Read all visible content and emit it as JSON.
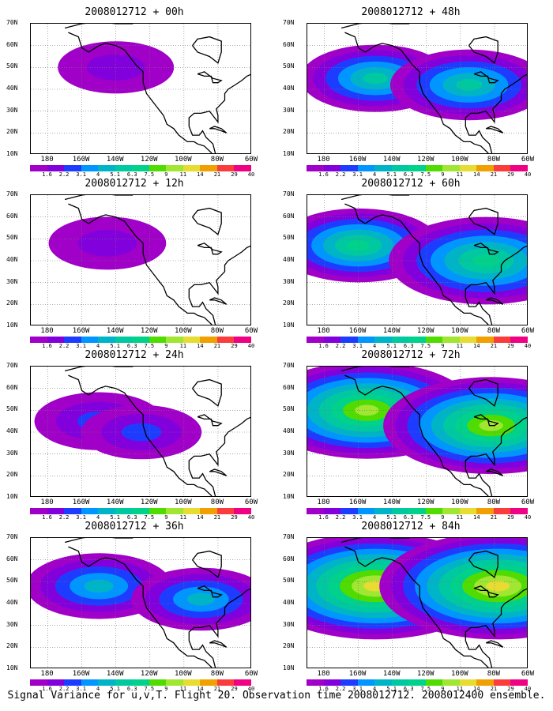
{
  "panels": [
    {
      "title": "2008012712 + 00h",
      "intensity": 0.15,
      "centers": [
        [
          -140,
          50,
          1.0
        ]
      ]
    },
    {
      "title": "2008012712 + 48h",
      "intensity": 0.55,
      "centers": [
        [
          -150,
          45,
          0.7
        ],
        [
          -95,
          42,
          0.8
        ]
      ]
    },
    {
      "title": "2008012712 + 12h",
      "intensity": 0.2,
      "centers": [
        [
          -145,
          48,
          0.8
        ]
      ]
    },
    {
      "title": "2008012712 + 60h",
      "intensity": 0.7,
      "centers": [
        [
          -160,
          47,
          0.7
        ],
        [
          -85,
          40,
          1.0
        ]
      ]
    },
    {
      "title": "2008012712 + 24h",
      "intensity": 0.3,
      "centers": [
        [
          -150,
          45,
          0.8
        ],
        [
          -125,
          40,
          0.6
        ]
      ]
    },
    {
      "title": "2008012712 + 72h",
      "intensity": 0.85,
      "centers": [
        [
          -155,
          50,
          1.0
        ],
        [
          -82,
          43,
          1.0
        ]
      ]
    },
    {
      "title": "2008012712 + 36h",
      "intensity": 0.45,
      "centers": [
        [
          -150,
          48,
          0.8
        ],
        [
          -90,
          42,
          0.7
        ]
      ]
    },
    {
      "title": "2008012712 + 84h",
      "intensity": 1.0,
      "centers": [
        [
          -150,
          48,
          1.0
        ],
        [
          -78,
          48,
          1.0
        ]
      ]
    }
  ],
  "y_ticks": [
    "70N",
    "60N",
    "50N",
    "40N",
    "30N",
    "20N",
    "10N"
  ],
  "x_ticks": [
    "180",
    "160W",
    "140W",
    "120W",
    "100W",
    "80W",
    "60W"
  ],
  "colorbar": {
    "labels": [
      "1.6",
      "2.2",
      "3.1",
      "4",
      "5.1",
      "6.3",
      "7.5",
      "9",
      "11",
      "14",
      "21",
      "29",
      "40"
    ],
    "colors": [
      "#a000c8",
      "#8200dc",
      "#1e3cff",
      "#0096ff",
      "#00b4c8",
      "#00c8a0",
      "#00d28c",
      "#50dc00",
      "#a0e632",
      "#e6dc32",
      "#f0a000",
      "#fa3c3c",
      "#f00082"
    ]
  },
  "caption": "Signal Variance for u,v,T. Flight 20. Observation time 2008012712. 2008012400 ensemble."
}
